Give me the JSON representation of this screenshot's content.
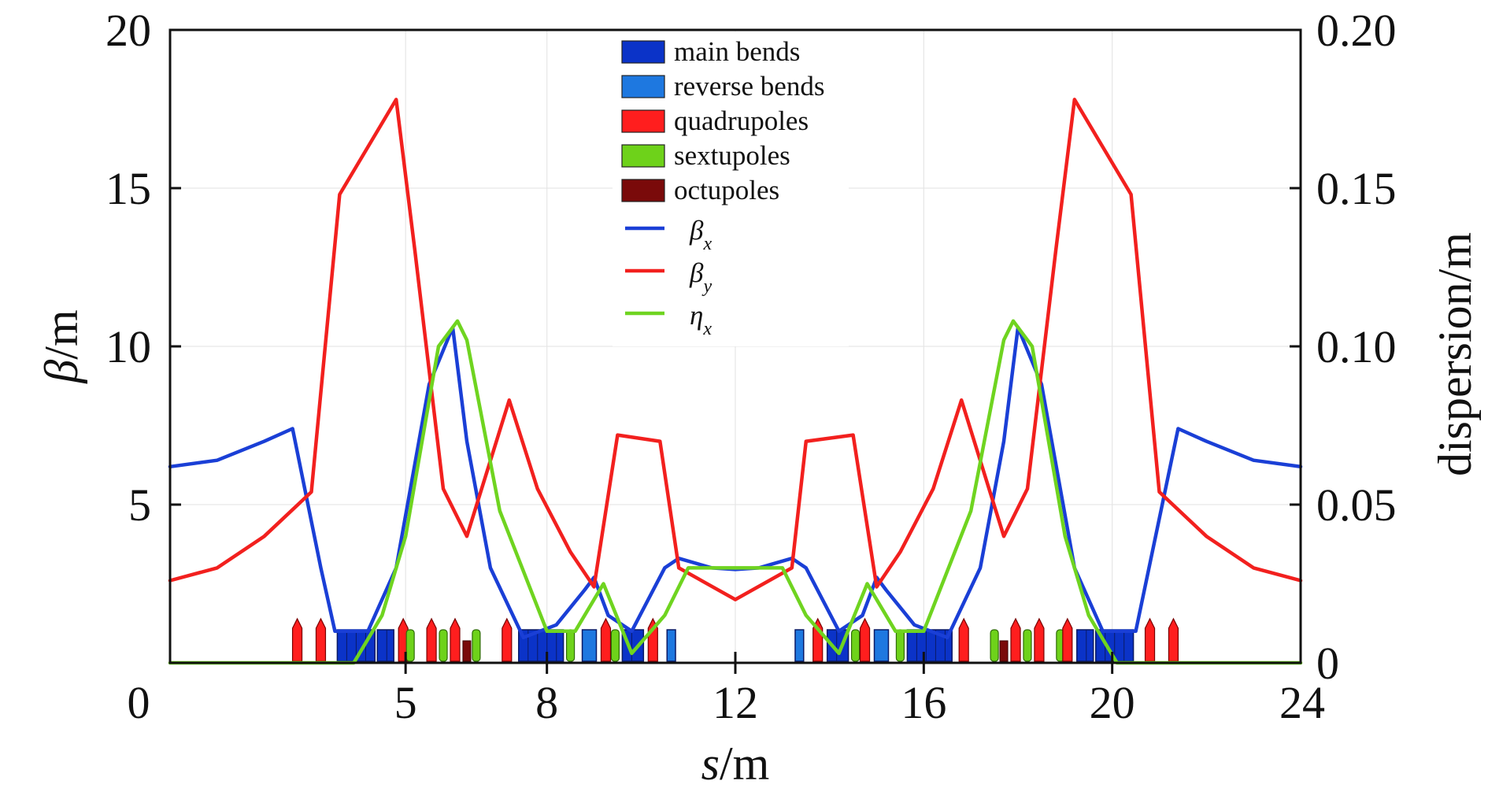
{
  "chart_data": {
    "type": "line",
    "xlabel_italic": "s",
    "xlabel_unit": "/m",
    "ylabel_italic": "β",
    "ylabel_unit": "/m",
    "y2label": "dispersion/m",
    "xlim": [
      0,
      24
    ],
    "ylim": [
      0,
      20
    ],
    "y2lim": [
      0,
      0.2
    ],
    "x_ticks": [
      "0",
      "5",
      "8",
      "12",
      "16",
      "20",
      "24"
    ],
    "y_ticks": [
      "20",
      "15",
      "10",
      "5"
    ],
    "y2_ticks": [
      "0.20",
      "0.15",
      "0.10",
      "0.05",
      "0"
    ],
    "grid": true,
    "legend_position": "top-center",
    "legend_patches": [
      {
        "label": "main bends",
        "color": "#0b33c8"
      },
      {
        "label": "reverse bends",
        "color": "#1e78e0"
      },
      {
        "label": "quadrupoles",
        "color": "#ff1e1e"
      },
      {
        "label": "sextupoles",
        "color": "#6ed21a"
      },
      {
        "label": "octupoles",
        "color": "#7a0a0a"
      }
    ],
    "series": [
      {
        "name": "β",
        "name_sub": "x",
        "color": "#1a3fd6",
        "axis": "left",
        "x": [
          0,
          1,
          2,
          2.6,
          3.2,
          3.5,
          4.2,
          4.8,
          5.5,
          6.0,
          6.3,
          6.8,
          7.5,
          8.2,
          8.8,
          9.0,
          9.3,
          9.8,
          10.5,
          10.8,
          11.5,
          12,
          12.5,
          13.2,
          13.5,
          14.2,
          14.7,
          15.0,
          15.2,
          15.8,
          16.5,
          17.2,
          17.7,
          18.0,
          18.5,
          19.2,
          19.8,
          20.5,
          21.4,
          22,
          23,
          24
        ],
        "y": [
          6.2,
          6.4,
          7.0,
          7.4,
          3.0,
          1.0,
          1.0,
          3.0,
          8.8,
          10.6,
          7.0,
          3.0,
          0.8,
          1.2,
          2.3,
          2.7,
          1.5,
          1.0,
          3.0,
          3.3,
          3.0,
          2.95,
          3.0,
          3.3,
          3.0,
          1.0,
          1.5,
          2.7,
          2.3,
          1.2,
          0.8,
          3.0,
          7.0,
          10.6,
          8.8,
          3.0,
          1.0,
          1.0,
          7.4,
          7.0,
          6.4,
          6.2
        ]
      },
      {
        "name": "β",
        "name_sub": "y",
        "color": "#f2201e",
        "axis": "left",
        "x": [
          0,
          1,
          2,
          3.0,
          3.6,
          4.8,
          5.2,
          5.8,
          6.3,
          7.2,
          7.8,
          8.5,
          9.0,
          9.5,
          10.4,
          10.8,
          12,
          13.2,
          13.5,
          14.5,
          15.0,
          15.5,
          16.2,
          16.8,
          17.7,
          18.2,
          18.8,
          19.2,
          20.4,
          21.0,
          22,
          23,
          24
        ],
        "y": [
          2.6,
          3.0,
          4.0,
          5.4,
          14.8,
          17.8,
          13.0,
          5.5,
          4.0,
          8.3,
          5.5,
          3.5,
          2.4,
          7.2,
          7.0,
          3.0,
          2.0,
          3.0,
          7.0,
          7.2,
          2.4,
          3.5,
          5.5,
          8.3,
          4.0,
          5.5,
          13.0,
          17.8,
          14.8,
          5.4,
          4.0,
          3.0,
          2.6
        ]
      },
      {
        "name": "η",
        "name_sub": "x",
        "color": "#6fd420",
        "axis": "right",
        "x": [
          0,
          2.0,
          3.5,
          3.9,
          4.5,
          5.0,
          5.7,
          6.1,
          6.3,
          7.0,
          8.0,
          8.6,
          9.2,
          9.8,
          10.5,
          11.0,
          12,
          13.0,
          13.5,
          14.2,
          14.8,
          15.4,
          16.0,
          17.0,
          17.7,
          17.9,
          18.3,
          19.0,
          19.5,
          20.1,
          22.0,
          24
        ],
        "y": [
          0,
          0,
          0,
          0.0,
          0.015,
          0.04,
          0.1,
          0.108,
          0.102,
          0.048,
          0.01,
          0.01,
          0.025,
          0.003,
          0.015,
          0.03,
          0.03,
          0.03,
          0.015,
          0.003,
          0.025,
          0.01,
          0.01,
          0.048,
          0.102,
          0.108,
          0.1,
          0.04,
          0.015,
          0.0,
          0,
          0
        ]
      }
    ],
    "elements": [
      {
        "type": "quad",
        "s": 2.7
      },
      {
        "type": "quad",
        "s": 3.2
      },
      {
        "type": "main",
        "s": 3.55,
        "len": 0.8
      },
      {
        "type": "main",
        "s": 4.4,
        "len": 0.35
      },
      {
        "type": "quad",
        "s": 4.95
      },
      {
        "type": "sext",
        "s": 5.1
      },
      {
        "type": "quad",
        "s": 5.55
      },
      {
        "type": "sext",
        "s": 5.8
      },
      {
        "type": "quad",
        "s": 6.05
      },
      {
        "type": "oct",
        "s": 6.3
      },
      {
        "type": "sext",
        "s": 6.5
      },
      {
        "type": "quad",
        "s": 7.15
      },
      {
        "type": "main",
        "s": 7.4,
        "len": 0.95
      },
      {
        "type": "sext",
        "s": 8.5
      },
      {
        "type": "rev",
        "s": 8.75,
        "len": 0.3
      },
      {
        "type": "quad",
        "s": 9.25
      },
      {
        "type": "sext",
        "s": 9.45
      },
      {
        "type": "main",
        "s": 9.6,
        "len": 0.45
      },
      {
        "type": "quad",
        "s": 10.25
      },
      {
        "type": "rev",
        "s": 10.55,
        "len": 0.18
      },
      {
        "type": "rev",
        "s": 13.27,
        "len": 0.18
      },
      {
        "type": "quad",
        "s": 13.75
      },
      {
        "type": "main",
        "s": 13.95,
        "len": 0.45
      },
      {
        "type": "sext",
        "s": 14.55
      },
      {
        "type": "quad",
        "s": 14.75
      },
      {
        "type": "rev",
        "s": 14.95,
        "len": 0.3
      },
      {
        "type": "sext",
        "s": 15.5
      },
      {
        "type": "main",
        "s": 15.65,
        "len": 0.95
      },
      {
        "type": "quad",
        "s": 16.85
      },
      {
        "type": "sext",
        "s": 17.5
      },
      {
        "type": "oct",
        "s": 17.7
      },
      {
        "type": "quad",
        "s": 17.95
      },
      {
        "type": "sext",
        "s": 18.2
      },
      {
        "type": "quad",
        "s": 18.45
      },
      {
        "type": "sext",
        "s": 18.9
      },
      {
        "type": "quad",
        "s": 19.05
      },
      {
        "type": "main",
        "s": 19.25,
        "len": 0.35
      },
      {
        "type": "main",
        "s": 19.65,
        "len": 0.8
      },
      {
        "type": "quad",
        "s": 20.8
      },
      {
        "type": "quad",
        "s": 21.3
      }
    ]
  }
}
